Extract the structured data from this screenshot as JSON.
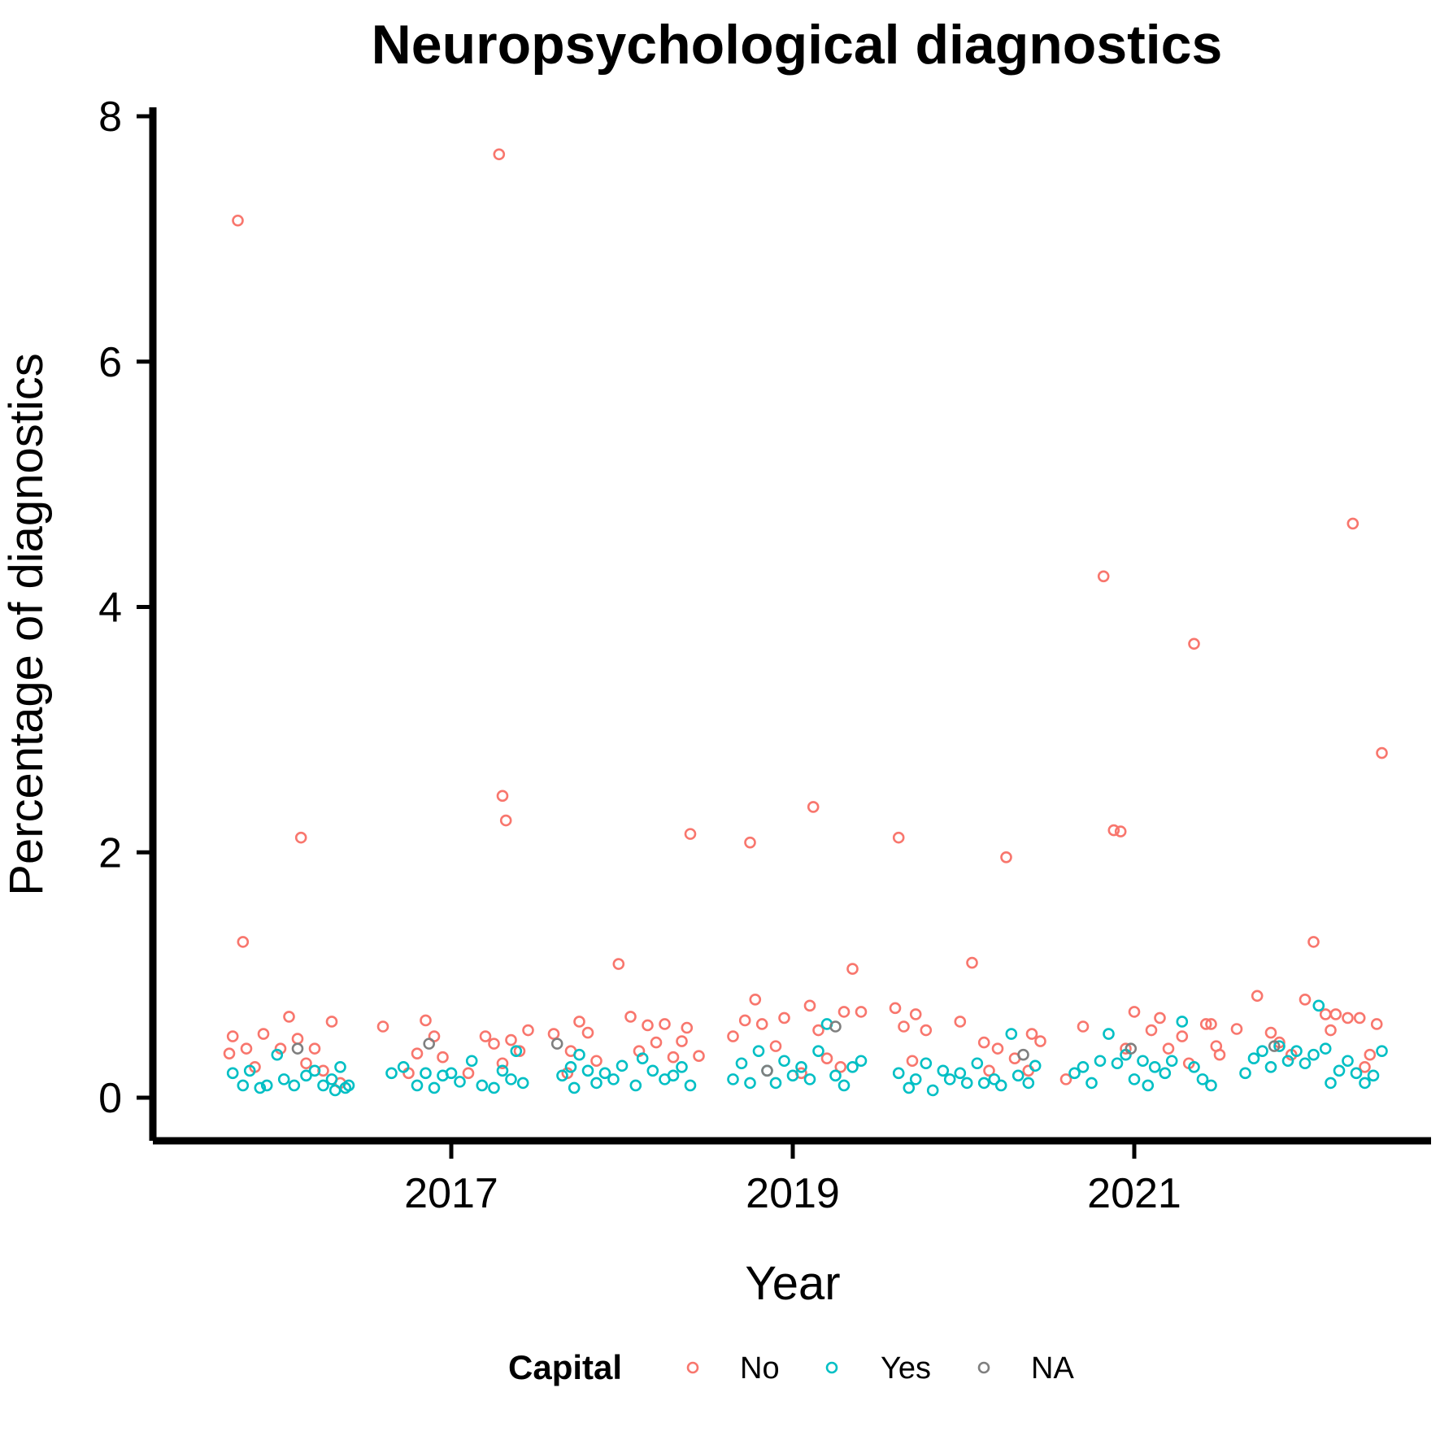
{
  "chart_data": {
    "type": "scatter",
    "title": "Neuropsychological diagnostics",
    "xlabel": "Year",
    "ylabel": "Percentage of diagnostics",
    "xlim": [
      2015.3,
      2023.0
    ],
    "ylim": [
      -0.3,
      8.0
    ],
    "x_ticks": [
      2017,
      2019,
      2021
    ],
    "x_tick_labels": [
      "2017",
      "2019",
      "2021"
    ],
    "y_ticks": [
      0,
      2,
      4,
      6,
      8
    ],
    "y_tick_labels": [
      "0",
      "2",
      "4",
      "6",
      "8"
    ],
    "grid": false,
    "legend": {
      "title": "Capital",
      "position": "bottom"
    },
    "series": [
      {
        "name": "No",
        "color": "#F8766D",
        "points": [
          [
            2015.75,
            7.15
          ],
          [
            2015.78,
            1.27
          ],
          [
            2016.05,
            0.66
          ],
          [
            2016.12,
            2.12
          ],
          [
            2016.3,
            0.62
          ],
          [
            2015.72,
            0.5
          ],
          [
            2015.8,
            0.4
          ],
          [
            2015.9,
            0.52
          ],
          [
            2016.0,
            0.4
          ],
          [
            2016.1,
            0.48
          ],
          [
            2016.2,
            0.4
          ],
          [
            2015.7,
            0.36
          ],
          [
            2015.85,
            0.25
          ],
          [
            2016.15,
            0.28
          ],
          [
            2016.25,
            0.22
          ],
          [
            2016.35,
            0.12
          ],
          [
            2016.6,
            0.58
          ],
          [
            2016.75,
            0.2
          ],
          [
            2016.85,
            0.63
          ],
          [
            2016.9,
            0.5
          ],
          [
            2016.8,
            0.36
          ],
          [
            2016.95,
            0.33
          ],
          [
            2017.1,
            0.2
          ],
          [
            2017.2,
            0.5
          ],
          [
            2017.3,
            0.28
          ],
          [
            2017.35,
            0.47
          ],
          [
            2017.45,
            0.55
          ],
          [
            2017.25,
            0.44
          ],
          [
            2017.28,
            7.69
          ],
          [
            2017.3,
            2.46
          ],
          [
            2017.32,
            2.26
          ],
          [
            2017.4,
            0.38
          ],
          [
            2017.6,
            0.52
          ],
          [
            2017.68,
            0.2
          ],
          [
            2017.75,
            0.62
          ],
          [
            2017.8,
            0.53
          ],
          [
            2017.85,
            0.3
          ],
          [
            2017.7,
            0.38
          ],
          [
            2017.98,
            1.09
          ],
          [
            2018.05,
            0.66
          ],
          [
            2018.15,
            0.59
          ],
          [
            2018.25,
            0.6
          ],
          [
            2018.1,
            0.38
          ],
          [
            2018.2,
            0.45
          ],
          [
            2018.3,
            0.33
          ],
          [
            2018.38,
            0.57
          ],
          [
            2018.4,
            2.15
          ],
          [
            2018.35,
            0.46
          ],
          [
            2018.45,
            0.34
          ],
          [
            2018.65,
            0.5
          ],
          [
            2018.72,
            0.63
          ],
          [
            2018.78,
            0.8
          ],
          [
            2018.82,
            0.6
          ],
          [
            2018.9,
            0.42
          ],
          [
            2018.95,
            0.65
          ],
          [
            2018.75,
            2.08
          ],
          [
            2019.1,
            0.75
          ],
          [
            2019.15,
            0.55
          ],
          [
            2019.12,
            2.37
          ],
          [
            2019.3,
            0.7
          ],
          [
            2019.35,
            1.05
          ],
          [
            2019.4,
            0.7
          ],
          [
            2019.2,
            0.32
          ],
          [
            2019.28,
            0.25
          ],
          [
            2019.05,
            0.2
          ],
          [
            2019.6,
            0.73
          ],
          [
            2019.65,
            0.58
          ],
          [
            2019.72,
            0.68
          ],
          [
            2019.78,
            0.55
          ],
          [
            2019.62,
            2.12
          ],
          [
            2019.7,
            0.3
          ],
          [
            2019.98,
            0.62
          ],
          [
            2020.05,
            1.1
          ],
          [
            2020.12,
            0.45
          ],
          [
            2020.2,
            0.4
          ],
          [
            2020.25,
            1.96
          ],
          [
            2020.3,
            0.32
          ],
          [
            2020.4,
            0.52
          ],
          [
            2020.45,
            0.46
          ],
          [
            2020.38,
            0.22
          ],
          [
            2020.15,
            0.22
          ],
          [
            2020.6,
            0.15
          ],
          [
            2020.7,
            0.58
          ],
          [
            2020.82,
            4.25
          ],
          [
            2020.88,
            2.18
          ],
          [
            2020.92,
            2.17
          ],
          [
            2020.95,
            0.4
          ],
          [
            2021.0,
            0.7
          ],
          [
            2021.1,
            0.55
          ],
          [
            2021.15,
            0.65
          ],
          [
            2021.2,
            0.4
          ],
          [
            2021.28,
            0.5
          ],
          [
            2021.32,
            0.28
          ],
          [
            2021.35,
            3.7
          ],
          [
            2021.42,
            0.6
          ],
          [
            2021.45,
            0.6
          ],
          [
            2021.48,
            0.42
          ],
          [
            2021.5,
            0.35
          ],
          [
            2021.6,
            0.56
          ],
          [
            2021.72,
            0.83
          ],
          [
            2021.8,
            0.53
          ],
          [
            2021.85,
            0.45
          ],
          [
            2021.92,
            0.35
          ],
          [
            2022.0,
            0.8
          ],
          [
            2022.05,
            1.27
          ],
          [
            2022.12,
            0.68
          ],
          [
            2022.18,
            0.68
          ],
          [
            2022.25,
            0.65
          ],
          [
            2022.28,
            4.68
          ],
          [
            2022.32,
            0.65
          ],
          [
            2022.38,
            0.35
          ],
          [
            2022.42,
            0.6
          ],
          [
            2022.45,
            2.81
          ],
          [
            2022.35,
            0.25
          ],
          [
            2022.15,
            0.55
          ]
        ]
      },
      {
        "name": "Yes",
        "color": "#00BFC4",
        "points": [
          [
            2015.72,
            0.2
          ],
          [
            2015.78,
            0.1
          ],
          [
            2015.82,
            0.22
          ],
          [
            2015.88,
            0.08
          ],
          [
            2015.92,
            0.1
          ],
          [
            2015.98,
            0.35
          ],
          [
            2016.02,
            0.15
          ],
          [
            2016.08,
            0.1
          ],
          [
            2016.15,
            0.18
          ],
          [
            2016.2,
            0.22
          ],
          [
            2016.25,
            0.1
          ],
          [
            2016.3,
            0.15
          ],
          [
            2016.35,
            0.25
          ],
          [
            2016.38,
            0.08
          ],
          [
            2016.4,
            0.1
          ],
          [
            2016.32,
            0.06
          ],
          [
            2016.65,
            0.2
          ],
          [
            2016.72,
            0.25
          ],
          [
            2016.8,
            0.1
          ],
          [
            2016.85,
            0.2
          ],
          [
            2016.9,
            0.08
          ],
          [
            2016.95,
            0.18
          ],
          [
            2017.0,
            0.2
          ],
          [
            2017.05,
            0.13
          ],
          [
            2017.12,
            0.3
          ],
          [
            2017.18,
            0.1
          ],
          [
            2017.25,
            0.08
          ],
          [
            2017.3,
            0.22
          ],
          [
            2017.35,
            0.15
          ],
          [
            2017.38,
            0.38
          ],
          [
            2017.42,
            0.12
          ],
          [
            2017.65,
            0.18
          ],
          [
            2017.7,
            0.25
          ],
          [
            2017.72,
            0.08
          ],
          [
            2017.75,
            0.35
          ],
          [
            2017.8,
            0.22
          ],
          [
            2017.85,
            0.12
          ],
          [
            2017.9,
            0.2
          ],
          [
            2017.95,
            0.15
          ],
          [
            2018.0,
            0.26
          ],
          [
            2018.08,
            0.1
          ],
          [
            2018.12,
            0.32
          ],
          [
            2018.18,
            0.22
          ],
          [
            2018.25,
            0.15
          ],
          [
            2018.3,
            0.18
          ],
          [
            2018.35,
            0.25
          ],
          [
            2018.4,
            0.1
          ],
          [
            2018.65,
            0.15
          ],
          [
            2018.7,
            0.28
          ],
          [
            2018.75,
            0.12
          ],
          [
            2018.8,
            0.38
          ],
          [
            2018.85,
            0.22
          ],
          [
            2018.9,
            0.12
          ],
          [
            2018.95,
            0.3
          ],
          [
            2019.0,
            0.18
          ],
          [
            2019.05,
            0.25
          ],
          [
            2019.1,
            0.15
          ],
          [
            2019.15,
            0.38
          ],
          [
            2019.2,
            0.6
          ],
          [
            2019.25,
            0.18
          ],
          [
            2019.3,
            0.1
          ],
          [
            2019.35,
            0.25
          ],
          [
            2019.4,
            0.3
          ],
          [
            2019.62,
            0.2
          ],
          [
            2019.68,
            0.08
          ],
          [
            2019.72,
            0.15
          ],
          [
            2019.78,
            0.28
          ],
          [
            2019.82,
            0.06
          ],
          [
            2019.88,
            0.22
          ],
          [
            2019.92,
            0.15
          ],
          [
            2019.98,
            0.2
          ],
          [
            2020.02,
            0.12
          ],
          [
            2020.08,
            0.28
          ],
          [
            2020.12,
            0.12
          ],
          [
            2020.18,
            0.15
          ],
          [
            2020.22,
            0.1
          ],
          [
            2020.28,
            0.52
          ],
          [
            2020.32,
            0.18
          ],
          [
            2020.38,
            0.12
          ],
          [
            2020.42,
            0.26
          ],
          [
            2020.65,
            0.2
          ],
          [
            2020.7,
            0.25
          ],
          [
            2020.75,
            0.12
          ],
          [
            2020.8,
            0.3
          ],
          [
            2020.85,
            0.52
          ],
          [
            2020.9,
            0.28
          ],
          [
            2020.95,
            0.35
          ],
          [
            2021.0,
            0.15
          ],
          [
            2021.05,
            0.3
          ],
          [
            2021.08,
            0.1
          ],
          [
            2021.12,
            0.25
          ],
          [
            2021.18,
            0.2
          ],
          [
            2021.22,
            0.3
          ],
          [
            2021.28,
            0.62
          ],
          [
            2021.35,
            0.25
          ],
          [
            2021.4,
            0.15
          ],
          [
            2021.45,
            0.1
          ],
          [
            2021.65,
            0.2
          ],
          [
            2021.7,
            0.32
          ],
          [
            2021.75,
            0.38
          ],
          [
            2021.8,
            0.25
          ],
          [
            2021.85,
            0.42
          ],
          [
            2021.9,
            0.3
          ],
          [
            2021.95,
            0.38
          ],
          [
            2022.0,
            0.28
          ],
          [
            2022.05,
            0.35
          ],
          [
            2022.08,
            0.75
          ],
          [
            2022.12,
            0.4
          ],
          [
            2022.15,
            0.12
          ],
          [
            2022.2,
            0.22
          ],
          [
            2022.25,
            0.3
          ],
          [
            2022.3,
            0.2
          ],
          [
            2022.35,
            0.12
          ],
          [
            2022.4,
            0.18
          ],
          [
            2022.45,
            0.38
          ]
        ]
      },
      {
        "name": "NA",
        "color": "#7F7F7F",
        "points": [
          [
            2016.1,
            0.4
          ],
          [
            2016.87,
            0.44
          ],
          [
            2017.62,
            0.44
          ],
          [
            2018.85,
            0.22
          ],
          [
            2019.25,
            0.58
          ],
          [
            2020.35,
            0.35
          ],
          [
            2020.98,
            0.4
          ],
          [
            2021.82,
            0.42
          ]
        ]
      }
    ]
  }
}
